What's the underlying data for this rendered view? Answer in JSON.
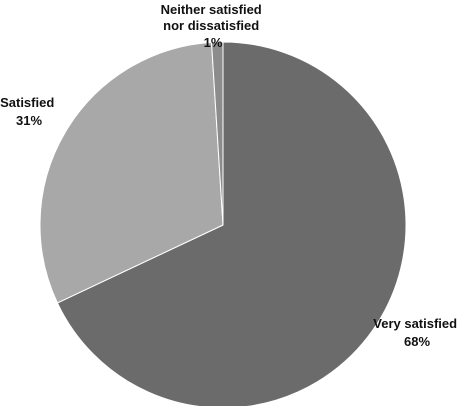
{
  "chart_data": {
    "type": "pie",
    "slices": [
      {
        "label": "Very satisfied",
        "percent_label": "68%",
        "value": 68,
        "color": "#6b6b6b"
      },
      {
        "label": "Satisfied",
        "percent_label": "31%",
        "value": 31,
        "color": "#a8a8a8"
      },
      {
        "label": "Neither satisfied nor dissatisfied",
        "label_lines": [
          "Neither satisfied",
          "nor dissatisfied"
        ],
        "percent_label": "1%",
        "value": 1,
        "color": "#8c8c8c"
      }
    ],
    "legend": "none",
    "start_angle_deg": 0,
    "direction": "clockwise"
  }
}
